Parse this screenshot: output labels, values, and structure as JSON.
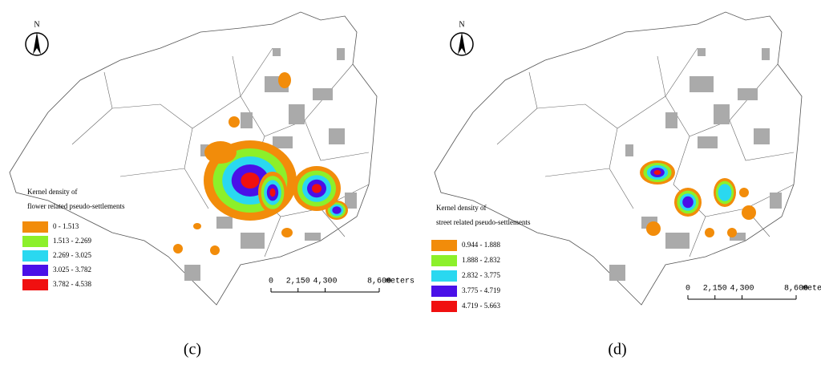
{
  "north": "N",
  "panels": [
    {
      "label": "(c)",
      "legend": {
        "title": [
          "Kernel density of",
          "flower related pseudo-settlements"
        ],
        "items": [
          {
            "label": "0 - 1.513",
            "color": "#f28c0a"
          },
          {
            "label": "1.513 - 2.269",
            "color": "#8cf02a"
          },
          {
            "label": "2.269 - 3.025",
            "color": "#2ad8f0"
          },
          {
            "label": "3.025 - 3.782",
            "color": "#4a10e8"
          },
          {
            "label": "3.782 - 4.538",
            "color": "#f01010"
          }
        ]
      },
      "scale": {
        "ticks": [
          "0",
          "2,150",
          "4,300",
          "8,600"
        ],
        "unit": "meters"
      }
    },
    {
      "label": "(d)",
      "legend": {
        "title": [
          "Kernel density of",
          "street related pseudo-settlements"
        ],
        "items": [
          {
            "label": "0.944 - 1.888",
            "color": "#f28c0a"
          },
          {
            "label": "1.888 - 2.832",
            "color": "#8cf02a"
          },
          {
            "label": "2.832 - 3.775",
            "color": "#2ad8f0"
          },
          {
            "label": "3.775 - 4.719",
            "color": "#4a10e8"
          },
          {
            "label": "4.719 - 5.663",
            "color": "#f01010"
          }
        ]
      },
      "scale": {
        "ticks": [
          "0",
          "2,150",
          "4,300",
          "8,600"
        ],
        "unit": "meters"
      }
    }
  ]
}
